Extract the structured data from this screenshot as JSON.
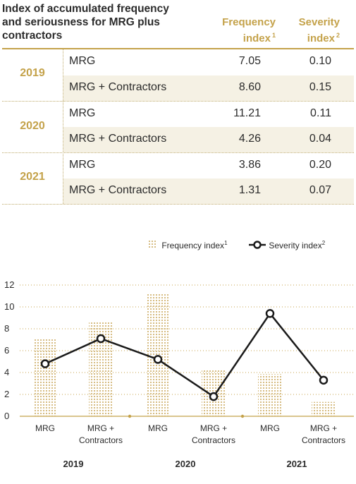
{
  "table": {
    "title_lines": [
      "Index of accumulated frequency",
      "and seriousness for MRG plus",
      "contractors"
    ],
    "header_frequency": [
      "Frequency",
      "index"
    ],
    "header_severity": [
      "Severity",
      "index"
    ],
    "header_frequency_sup": "1",
    "header_severity_sup": "2",
    "rows": [
      {
        "year": "2019",
        "entries": [
          {
            "label": "MRG",
            "frequency": "7.05",
            "severity": "0.10"
          },
          {
            "label": "MRG + Contractors",
            "frequency": "8.60",
            "severity": "0.15"
          }
        ]
      },
      {
        "year": "2020",
        "entries": [
          {
            "label": "MRG",
            "frequency": "11.21",
            "severity": "0.11"
          },
          {
            "label": "MRG + Contractors",
            "frequency": "4.26",
            "severity": "0.04"
          }
        ]
      },
      {
        "year": "2021",
        "entries": [
          {
            "label": "MRG",
            "frequency": "3.86",
            "severity": "0.20"
          },
          {
            "label": "MRG + Contractors",
            "frequency": "1.31",
            "severity": "0.07"
          }
        ]
      }
    ]
  },
  "colors": {
    "accent": "#c4a24a",
    "line": "#1a1a1a",
    "bar": "#c9a75a"
  },
  "chart_data": {
    "type": "bar",
    "categories": [
      [
        "MRG"
      ],
      [
        "MRG +",
        "Contractors"
      ],
      [
        "MRG"
      ],
      [
        "MRG +",
        "Contractors"
      ],
      [
        "MRG"
      ],
      [
        "MRG +",
        "Contractors"
      ]
    ],
    "groups": [
      "2019",
      "2020",
      "2021"
    ],
    "ylim": [
      0,
      12
    ],
    "yticks": [
      "0",
      "2",
      "4",
      "6",
      "8",
      "10",
      "12"
    ],
    "grid": true,
    "legend_position": "top-right",
    "series": [
      {
        "name": "Frequency index",
        "name_sup": "1",
        "type": "bar",
        "values": [
          7.05,
          8.6,
          11.21,
          4.26,
          3.86,
          1.31
        ]
      },
      {
        "name": "Severity index",
        "name_sup": "2",
        "type": "line",
        "values": [
          4.8,
          7.1,
          5.2,
          1.8,
          9.4,
          3.3
        ]
      }
    ]
  }
}
